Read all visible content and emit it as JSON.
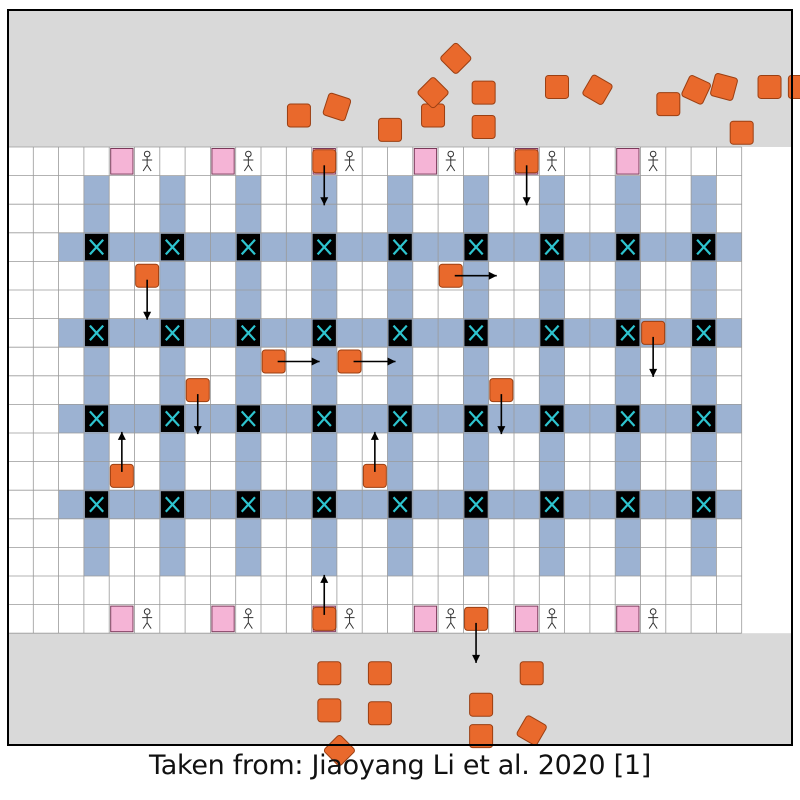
{
  "caption": "Taken from: Jiaoyang Li et al. 2020 [1]",
  "colors": {
    "queue_area": "#d9d9d9",
    "grid_line": "#9a9a9a",
    "aisle": "#9cb2d2",
    "shelf": "#000000",
    "shelf_mark": "#2ec4cf",
    "robot": "#e9692c",
    "robot_outline": "#9b3f12",
    "station": "#f5b4d6",
    "border": "#000000"
  },
  "icons": {
    "robot": "rounded-square",
    "shelf_mark": "x-mark",
    "station_worker": "stick-figure-icon",
    "move": "arrow-icon"
  },
  "grid": {
    "cols": 29,
    "rows": 17,
    "top_queue_rows": 1
  },
  "shelves": {
    "cols": [
      3,
      6,
      9,
      12,
      15,
      18,
      21,
      24,
      27
    ],
    "rows": [
      3,
      6,
      9,
      12
    ],
    "aisle_row_span": [
      1,
      14
    ],
    "aisle_col_span": [
      2,
      28
    ]
  },
  "stations": {
    "top": {
      "row": 0,
      "cols": [
        4,
        8,
        12,
        16,
        20,
        24
      ]
    },
    "bottom": {
      "row": 16,
      "cols": [
        4,
        8,
        12,
        16,
        20,
        24
      ]
    }
  },
  "robots": [
    {
      "col": 12,
      "row": 0,
      "dir": "down"
    },
    {
      "col": 20,
      "row": 0,
      "dir": "down"
    },
    {
      "col": 5,
      "row": 4,
      "dir": "down"
    },
    {
      "col": 17,
      "row": 4,
      "dir": "right"
    },
    {
      "col": 25,
      "row": 6,
      "dir": "down"
    },
    {
      "col": 10,
      "row": 7,
      "dir": "right"
    },
    {
      "col": 13,
      "row": 7,
      "dir": "right"
    },
    {
      "col": 7,
      "row": 8,
      "dir": "down"
    },
    {
      "col": 19,
      "row": 8,
      "dir": "down"
    },
    {
      "col": 4,
      "row": 11,
      "dir": "up"
    },
    {
      "col": 14,
      "row": 11,
      "dir": "up"
    },
    {
      "col": 12,
      "row": 16,
      "dir": "up"
    },
    {
      "col": 18,
      "row": 16,
      "dir": "down"
    }
  ],
  "queued_top": [
    {
      "c": 11,
      "r": -1.6,
      "rot": 0
    },
    {
      "c": 12.5,
      "r": -1.9,
      "rot": 18
    },
    {
      "c": 14.6,
      "r": -1.1,
      "rot": 0
    },
    {
      "c": 16.3,
      "r": -1.6,
      "rot": 0
    },
    {
      "c": 16.3,
      "r": -2.4,
      "rot": 45
    },
    {
      "c": 17.2,
      "r": -3.6,
      "rot": 45
    },
    {
      "c": 18.3,
      "r": -2.4,
      "rot": 0
    },
    {
      "c": 18.3,
      "r": -1.2,
      "rot": 0
    },
    {
      "c": 21.2,
      "r": -2.6,
      "rot": 0
    },
    {
      "c": 22.8,
      "r": -2.5,
      "rot": 30
    },
    {
      "c": 25.6,
      "r": -2.0,
      "rot": 0
    },
    {
      "c": 26.7,
      "r": -2.5,
      "rot": 25
    },
    {
      "c": 27.8,
      "r": -2.6,
      "rot": 15
    },
    {
      "c": 29.6,
      "r": -2.6,
      "rot": 0
    },
    {
      "c": 30.8,
      "r": -2.6,
      "rot": 0
    },
    {
      "c": 28.5,
      "r": -1.0,
      "rot": 0
    }
  ],
  "queued_bottom": [
    {
      "c": 12.2,
      "r": 17.9,
      "rot": 0
    },
    {
      "c": 12.2,
      "r": 19.2,
      "rot": 0
    },
    {
      "c": 12.6,
      "r": 20.6,
      "rot": 45
    },
    {
      "c": 14.2,
      "r": 17.9,
      "rot": 0
    },
    {
      "c": 14.2,
      "r": 19.3,
      "rot": 0
    },
    {
      "c": 18.2,
      "r": 19.0,
      "rot": 0
    },
    {
      "c": 18.2,
      "r": 20.1,
      "rot": 0
    },
    {
      "c": 20.2,
      "r": 17.9,
      "rot": 0
    },
    {
      "c": 20.2,
      "r": 19.9,
      "rot": 30
    }
  ]
}
